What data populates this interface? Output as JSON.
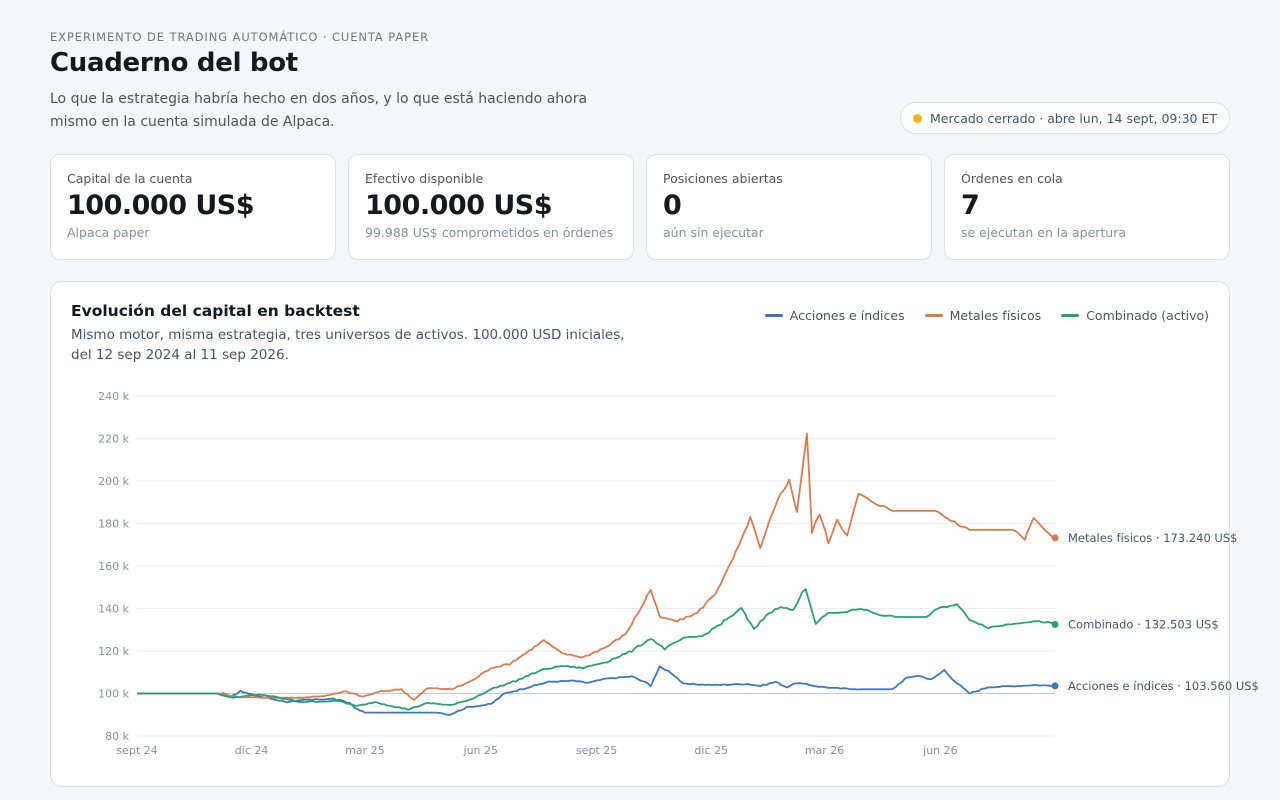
{
  "header": {
    "eyebrow": "EXPERIMENTO DE TRADING AUTOMÁTICO · CUENTA PAPER",
    "title": "Cuaderno del bot",
    "intro": "Lo que la estrategia habría hecho en dos años, y lo que está haciendo ahora mismo en la cuenta simulada de Alpaca.",
    "market_status": "Mercado cerrado · abre lun, 14 sept, 09:30 ET",
    "market_status_color": "#f5b619"
  },
  "cards": [
    {
      "label": "Capital de la cuenta",
      "value": "100.000 US$",
      "sub": "Alpaca paper"
    },
    {
      "label": "Efectivo disponible",
      "value": "100.000 US$",
      "sub": "99.988 US$ comprometidos en órdenes"
    },
    {
      "label": "Posiciones abiertas",
      "value": "0",
      "sub": "aún sin ejecutar"
    },
    {
      "label": "Órdenes en cola",
      "value": "7",
      "sub": "se ejecutan en la apertura"
    }
  ],
  "chart_panel": {
    "title": "Evolución del capital en backtest",
    "subtitle": "Mismo motor, misma estrategia, tres universos de activos. 100.000 USD iniciales, del 12 sep 2024 al 11 sep 2026."
  },
  "chart_data": {
    "type": "line",
    "x_tick_labels": [
      "sept 24",
      "dic 24",
      "mar 25",
      "jun 25",
      "sept 25",
      "dic 25",
      "mar 26",
      "jun 26"
    ],
    "x_tick_dates": [
      "2024-09-12",
      "2024-12-12",
      "2025-03-12",
      "2025-06-12",
      "2025-09-12",
      "2025-12-12",
      "2026-03-12",
      "2026-06-12"
    ],
    "y_tick_labels": [
      "80 k",
      "100 k",
      "120 k",
      "140 k",
      "160 k",
      "180 k",
      "200 k",
      "220 k",
      "240 k"
    ],
    "y_ticks": [
      80000,
      100000,
      120000,
      140000,
      160000,
      180000,
      200000,
      220000,
      240000
    ],
    "ylim": [
      80000,
      240000
    ],
    "xlim": [
      "2024-09-12",
      "2026-09-11"
    ],
    "grid": true,
    "legend_position": "top-right",
    "series": [
      {
        "name": "Acciones e índices",
        "color": "#3b78c4",
        "end_label": "Acciones e índices · 103.560 US$",
        "points": [
          [
            "2024-09-12",
            100000
          ],
          [
            "2024-11-15",
            100000
          ],
          [
            "2024-11-25",
            98500
          ],
          [
            "2024-12-03",
            101000
          ],
          [
            "2024-12-15",
            99000
          ],
          [
            "2025-01-10",
            96000
          ],
          [
            "2025-01-25",
            97000
          ],
          [
            "2025-02-15",
            97500
          ],
          [
            "2025-02-28",
            95500
          ],
          [
            "2025-03-06",
            92500
          ],
          [
            "2025-03-12",
            91000
          ],
          [
            "2025-04-15",
            91000
          ],
          [
            "2025-05-10",
            91000
          ],
          [
            "2025-05-18",
            90000
          ],
          [
            "2025-06-01",
            93500
          ],
          [
            "2025-06-20",
            95000
          ],
          [
            "2025-07-01",
            100000
          ],
          [
            "2025-07-20",
            103000
          ],
          [
            "2025-08-05",
            105500
          ],
          [
            "2025-08-25",
            106000
          ],
          [
            "2025-09-05",
            105000
          ],
          [
            "2025-09-20",
            107000
          ],
          [
            "2025-10-10",
            108000
          ],
          [
            "2025-10-25",
            104000
          ],
          [
            "2025-11-01",
            112500
          ],
          [
            "2025-11-10",
            110000
          ],
          [
            "2025-11-20",
            104500
          ],
          [
            "2025-12-15",
            104000
          ],
          [
            "2026-01-10",
            104500
          ],
          [
            "2026-01-20",
            103500
          ],
          [
            "2026-02-01",
            105500
          ],
          [
            "2026-02-10",
            103000
          ],
          [
            "2026-02-18",
            105000
          ],
          [
            "2026-03-05",
            103500
          ],
          [
            "2026-03-20",
            102500
          ],
          [
            "2026-04-10",
            102000
          ],
          [
            "2026-05-05",
            102000
          ],
          [
            "2026-05-15",
            107000
          ],
          [
            "2026-05-25",
            108500
          ],
          [
            "2026-06-05",
            106500
          ],
          [
            "2026-06-15",
            111000
          ],
          [
            "2026-06-25",
            105000
          ],
          [
            "2026-07-05",
            100000
          ],
          [
            "2026-07-20",
            103000
          ],
          [
            "2026-08-10",
            103500
          ],
          [
            "2026-08-25",
            104000
          ],
          [
            "2026-09-11",
            103560
          ]
        ]
      },
      {
        "name": "Metales físicos",
        "color": "#e07a4b",
        "end_label": "Metales físicos · 173.240 US$",
        "points": [
          [
            "2024-09-12",
            100000
          ],
          [
            "2024-11-20",
            100000
          ],
          [
            "2024-11-28",
            98500
          ],
          [
            "2024-12-20",
            98000
          ],
          [
            "2025-01-20",
            98000
          ],
          [
            "2025-02-10",
            99000
          ],
          [
            "2025-02-25",
            101000
          ],
          [
            "2025-03-10",
            98500
          ],
          [
            "2025-03-25",
            101000
          ],
          [
            "2025-04-10",
            102000
          ],
          [
            "2025-04-20",
            97000
          ],
          [
            "2025-05-01",
            102500
          ],
          [
            "2025-05-20",
            102000
          ],
          [
            "2025-06-05",
            106000
          ],
          [
            "2025-06-20",
            112000
          ],
          [
            "2025-07-05",
            114000
          ],
          [
            "2025-07-20",
            120000
          ],
          [
            "2025-08-01",
            125000
          ],
          [
            "2025-08-15",
            119000
          ],
          [
            "2025-09-01",
            117000
          ],
          [
            "2025-09-20",
            122000
          ],
          [
            "2025-10-05",
            128000
          ],
          [
            "2025-10-15",
            138000
          ],
          [
            "2025-10-25",
            149000
          ],
          [
            "2025-11-01",
            136000
          ],
          [
            "2025-11-15",
            134000
          ],
          [
            "2025-12-01",
            138000
          ],
          [
            "2025-12-15",
            147000
          ],
          [
            "2025-12-25",
            158000
          ],
          [
            "2026-01-05",
            172000
          ],
          [
            "2026-01-12",
            183000
          ],
          [
            "2026-01-20",
            168000
          ],
          [
            "2026-01-28",
            182000
          ],
          [
            "2026-02-05",
            194000
          ],
          [
            "2026-02-12",
            200000
          ],
          [
            "2026-02-18",
            186000
          ],
          [
            "2026-02-26",
            222000
          ],
          [
            "2026-03-02",
            176000
          ],
          [
            "2026-03-08",
            185000
          ],
          [
            "2026-03-15",
            171000
          ],
          [
            "2026-03-22",
            182000
          ],
          [
            "2026-03-30",
            174000
          ],
          [
            "2026-04-08",
            194000
          ],
          [
            "2026-04-20",
            190000
          ],
          [
            "2026-05-05",
            186000
          ],
          [
            "2026-05-30",
            186000
          ],
          [
            "2026-06-10",
            186000
          ],
          [
            "2026-06-18",
            182000
          ],
          [
            "2026-07-05",
            177000
          ],
          [
            "2026-08-10",
            177000
          ],
          [
            "2026-08-18",
            172000
          ],
          [
            "2026-08-25",
            183000
          ],
          [
            "2026-09-05",
            176000
          ],
          [
            "2026-09-11",
            173240
          ]
        ]
      },
      {
        "name": "Combinado (activo)",
        "color": "#22a277",
        "end_label": "Combinado · 132.503 US$",
        "points": [
          [
            "2024-09-12",
            100000
          ],
          [
            "2024-11-15",
            100000
          ],
          [
            "2024-11-25",
            98000
          ],
          [
            "2024-12-20",
            99500
          ],
          [
            "2025-01-20",
            96000
          ],
          [
            "2025-02-20",
            96500
          ],
          [
            "2025-03-05",
            94000
          ],
          [
            "2025-03-20",
            96000
          ],
          [
            "2025-04-15",
            92500
          ],
          [
            "2025-05-01",
            95500
          ],
          [
            "2025-05-20",
            94500
          ],
          [
            "2025-06-05",
            97500
          ],
          [
            "2025-06-20",
            102000
          ],
          [
            "2025-07-10",
            106000
          ],
          [
            "2025-07-30",
            111000
          ],
          [
            "2025-08-15",
            113000
          ],
          [
            "2025-09-01",
            112000
          ],
          [
            "2025-09-20",
            115000
          ],
          [
            "2025-10-10",
            120000
          ],
          [
            "2025-10-25",
            126000
          ],
          [
            "2025-11-05",
            121000
          ],
          [
            "2025-11-20",
            126000
          ],
          [
            "2025-12-05",
            127000
          ],
          [
            "2025-12-20",
            133000
          ],
          [
            "2026-01-05",
            140000
          ],
          [
            "2026-01-15",
            130000
          ],
          [
            "2026-01-25",
            137000
          ],
          [
            "2026-02-05",
            141000
          ],
          [
            "2026-02-15",
            139000
          ],
          [
            "2026-02-25",
            150000
          ],
          [
            "2026-03-05",
            133000
          ],
          [
            "2026-03-15",
            138000
          ],
          [
            "2026-03-25",
            138000
          ],
          [
            "2026-04-10",
            140000
          ],
          [
            "2026-04-25",
            137000
          ],
          [
            "2026-05-10",
            136000
          ],
          [
            "2026-06-01",
            136000
          ],
          [
            "2026-06-10",
            140000
          ],
          [
            "2026-06-25",
            142000
          ],
          [
            "2026-07-05",
            135000
          ],
          [
            "2026-07-20",
            131000
          ],
          [
            "2026-08-10",
            133000
          ],
          [
            "2026-08-25",
            134000
          ],
          [
            "2026-09-05",
            133500
          ],
          [
            "2026-09-11",
            132503
          ]
        ]
      }
    ]
  }
}
